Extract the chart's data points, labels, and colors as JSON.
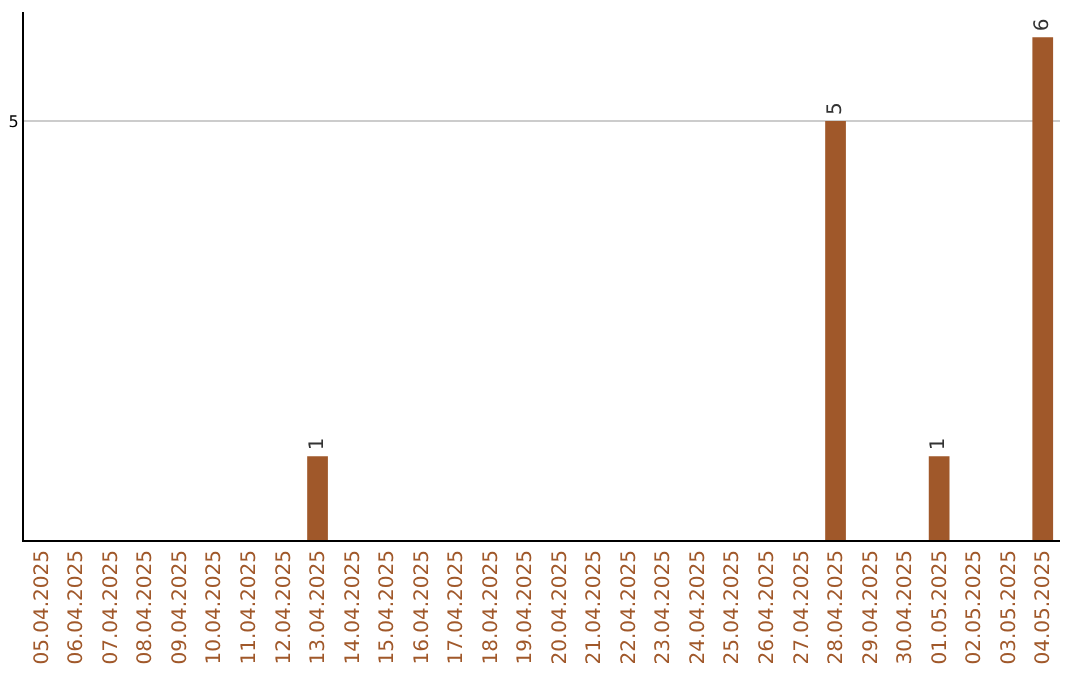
{
  "chart_data": {
    "type": "bar",
    "categories": [
      "05.04.2025",
      "06.04.2025",
      "07.04.2025",
      "08.04.2025",
      "09.04.2025",
      "10.04.2025",
      "11.04.2025",
      "12.04.2025",
      "13.04.2025",
      "14.04.2025",
      "15.04.2025",
      "16.04.2025",
      "17.04.2025",
      "18.04.2025",
      "19.04.2025",
      "20.04.2025",
      "21.04.2025",
      "22.04.2025",
      "23.04.2025",
      "24.04.2025",
      "25.04.2025",
      "26.04.2025",
      "27.04.2025",
      "28.04.2025",
      "29.04.2025",
      "30.04.2025",
      "01.05.2025",
      "02.05.2025",
      "03.05.2025",
      "04.05.2025"
    ],
    "values": [
      0,
      0,
      0,
      0,
      0,
      0,
      0,
      0,
      1,
      0,
      0,
      0,
      0,
      0,
      0,
      0,
      0,
      0,
      0,
      0,
      0,
      0,
      0,
      5,
      0,
      0,
      1,
      0,
      0,
      6
    ],
    "value_labels": [
      null,
      null,
      null,
      null,
      null,
      null,
      null,
      null,
      "1",
      null,
      null,
      null,
      null,
      null,
      null,
      null,
      null,
      null,
      null,
      null,
      null,
      null,
      null,
      "5",
      null,
      null,
      "1",
      null,
      null,
      "6"
    ],
    "color": "#a0582a",
    "ylim": [
      0,
      6.3
    ],
    "yticks": [
      5
    ],
    "grid": "y"
  }
}
